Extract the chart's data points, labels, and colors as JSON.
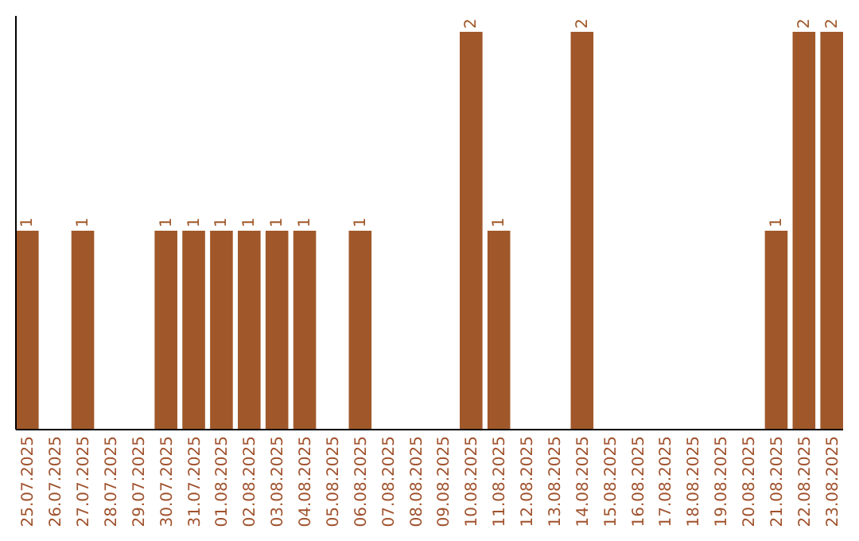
{
  "chart_data": {
    "type": "bar",
    "categories": [
      "25.07.2025",
      "26.07.2025",
      "27.07.2025",
      "28.07.2025",
      "29.07.2025",
      "30.07.2025",
      "31.07.2025",
      "01.08.2025",
      "02.08.2025",
      "03.08.2025",
      "04.08.2025",
      "05.08.2025",
      "06.08.2025",
      "07.08.2025",
      "08.08.2025",
      "09.08.2025",
      "10.08.2025",
      "11.08.2025",
      "12.08.2025",
      "13.08.2025",
      "14.08.2025",
      "15.08.2025",
      "16.08.2025",
      "17.08.2025",
      "18.08.2025",
      "19.08.2025",
      "20.08.2025",
      "21.08.2025",
      "22.08.2025",
      "23.08.2025"
    ],
    "values": [
      1,
      0,
      1,
      0,
      0,
      1,
      1,
      1,
      1,
      1,
      1,
      0,
      1,
      0,
      0,
      0,
      2,
      1,
      0,
      0,
      2,
      0,
      0,
      0,
      0,
      0,
      0,
      1,
      2,
      2
    ],
    "value_labels": [
      "1",
      null,
      "1",
      null,
      null,
      "1",
      "1",
      "1",
      "1",
      "1",
      "1",
      null,
      "1",
      null,
      null,
      null,
      "2",
      "1",
      null,
      null,
      "2",
      null,
      null,
      null,
      null,
      null,
      null,
      "1",
      "2",
      "2"
    ],
    "color": "#a0582a",
    "ylim": [
      0,
      2.08
    ],
    "tick_labels": "x"
  }
}
